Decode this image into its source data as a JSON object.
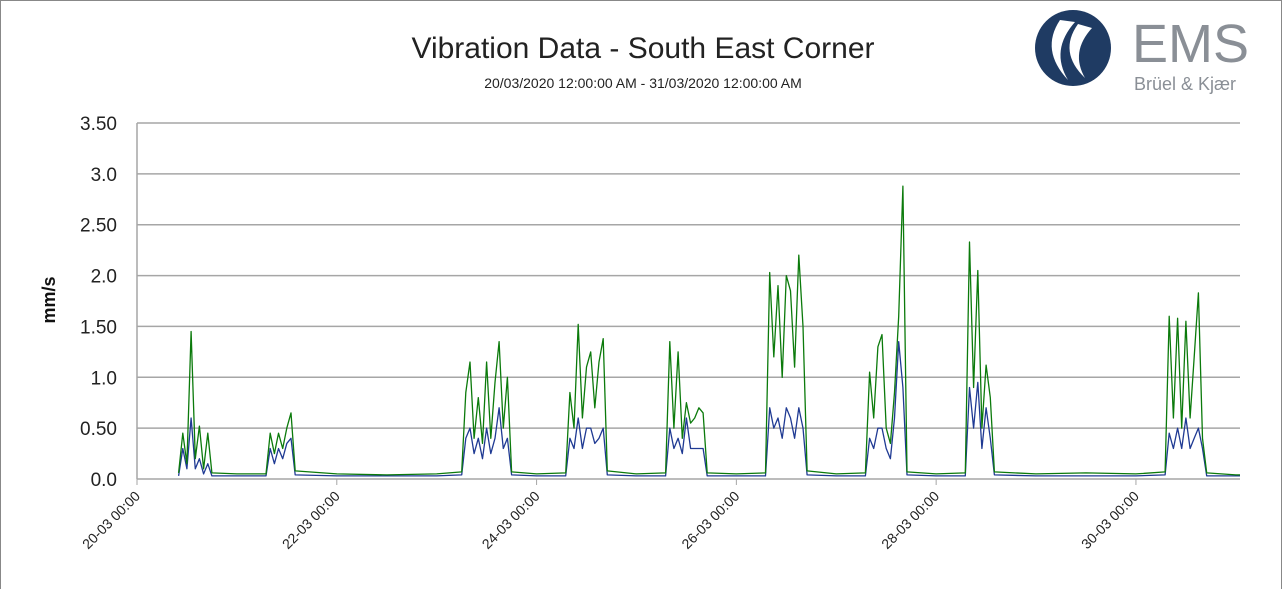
{
  "chart_data": {
    "type": "line",
    "title": "Vibration Data -  South East Corner",
    "subtitle": "20/03/2020 12:00:00 AM - 31/03/2020 12:00:00 AM",
    "y_label": "mm/s",
    "logo": {
      "name": "EMS",
      "tagline": "Brüel & Kjær"
    },
    "x": [
      "20-03 10:00",
      "20-03 11:00",
      "20-03 12:00",
      "20-03 13:00",
      "20-03 14:00",
      "20-03 15:00",
      "20-03 16:00",
      "20-03 17:00",
      "20-03 18:00",
      "21-03 00:00",
      "21-03 07:00",
      "21-03 08:00",
      "21-03 09:00",
      "21-03 10:00",
      "21-03 11:00",
      "21-03 12:00",
      "21-03 13:00",
      "21-03 14:00",
      "22-03 00:00",
      "22-03 12:00",
      "23-03 00:00",
      "23-03 06:00",
      "23-03 07:00",
      "23-03 08:00",
      "23-03 09:00",
      "23-03 10:00",
      "23-03 11:00",
      "23-03 12:00",
      "23-03 13:00",
      "23-03 14:00",
      "23-03 15:00",
      "23-03 16:00",
      "23-03 17:00",
      "23-03 18:00",
      "24-03 00:00",
      "24-03 07:00",
      "24-03 08:00",
      "24-03 09:00",
      "24-03 10:00",
      "24-03 11:00",
      "24-03 12:00",
      "24-03 13:00",
      "24-03 14:00",
      "24-03 15:00",
      "24-03 16:00",
      "24-03 17:00",
      "25-03 00:00",
      "25-03 07:00",
      "25-03 08:00",
      "25-03 09:00",
      "25-03 10:00",
      "25-03 11:00",
      "25-03 12:00",
      "25-03 13:00",
      "25-03 14:00",
      "25-03 15:00",
      "25-03 16:00",
      "25-03 17:00",
      "26-03 00:00",
      "26-03 07:00",
      "26-03 08:00",
      "26-03 09:00",
      "26-03 10:00",
      "26-03 11:00",
      "26-03 12:00",
      "26-03 13:00",
      "26-03 14:00",
      "26-03 15:00",
      "26-03 16:00",
      "26-03 17:00",
      "27-03 00:00",
      "27-03 07:00",
      "27-03 08:00",
      "27-03 09:00",
      "27-03 10:00",
      "27-03 11:00",
      "27-03 12:00",
      "27-03 13:00",
      "27-03 14:00",
      "27-03 15:00",
      "27-03 16:00",
      "27-03 17:00",
      "28-03 00:00",
      "28-03 07:00",
      "28-03 08:00",
      "28-03 09:00",
      "28-03 10:00",
      "28-03 11:00",
      "28-03 12:00",
      "28-03 13:00",
      "28-03 14:00",
      "29-03 00:00",
      "29-03 12:00",
      "30-03 00:00",
      "30-03 07:00",
      "30-03 08:00",
      "30-03 09:00",
      "30-03 10:00",
      "30-03 11:00",
      "30-03 12:00",
      "30-03 13:00",
      "30-03 14:00",
      "30-03 15:00",
      "30-03 16:00",
      "30-03 17:00",
      "31-03 00:00",
      "31-03 01:00"
    ],
    "series": [
      {
        "color": "#1f3a93",
        "values": [
          0.03,
          0.3,
          0.1,
          0.6,
          0.1,
          0.2,
          0.05,
          0.15,
          0.03,
          0.03,
          0.03,
          0.3,
          0.15,
          0.3,
          0.2,
          0.35,
          0.4,
          0.04,
          0.03,
          0.03,
          0.03,
          0.04,
          0.4,
          0.5,
          0.25,
          0.4,
          0.2,
          0.5,
          0.25,
          0.4,
          0.7,
          0.3,
          0.4,
          0.04,
          0.03,
          0.03,
          0.4,
          0.3,
          0.6,
          0.3,
          0.5,
          0.5,
          0.35,
          0.4,
          0.5,
          0.04,
          0.03,
          0.03,
          0.5,
          0.3,
          0.4,
          0.25,
          0.6,
          0.3,
          0.3,
          0.3,
          0.3,
          0.03,
          0.03,
          0.03,
          0.7,
          0.5,
          0.6,
          0.4,
          0.7,
          0.6,
          0.4,
          0.7,
          0.5,
          0.04,
          0.03,
          0.03,
          0.4,
          0.3,
          0.5,
          0.5,
          0.3,
          0.2,
          0.6,
          1.35,
          0.9,
          0.04,
          0.03,
          0.03,
          0.9,
          0.5,
          0.95,
          0.3,
          0.7,
          0.4,
          0.04,
          0.03,
          0.03,
          0.03,
          0.04,
          0.45,
          0.3,
          0.5,
          0.3,
          0.6,
          0.3,
          0.4,
          0.5,
          0.3,
          0.03,
          0.03,
          0.03
        ]
      },
      {
        "color": "#0b7a0b",
        "values": [
          0.06,
          0.45,
          0.15,
          1.45,
          0.2,
          0.52,
          0.1,
          0.45,
          0.06,
          0.05,
          0.05,
          0.45,
          0.25,
          0.45,
          0.3,
          0.5,
          0.65,
          0.08,
          0.05,
          0.04,
          0.05,
          0.07,
          0.85,
          1.15,
          0.4,
          0.8,
          0.35,
          1.15,
          0.4,
          0.95,
          1.35,
          0.5,
          1.0,
          0.07,
          0.05,
          0.06,
          0.85,
          0.5,
          1.52,
          0.6,
          1.1,
          1.25,
          0.7,
          1.15,
          1.38,
          0.08,
          0.05,
          0.06,
          1.35,
          0.5,
          1.25,
          0.4,
          0.75,
          0.55,
          0.6,
          0.7,
          0.65,
          0.06,
          0.05,
          0.06,
          2.03,
          1.2,
          1.9,
          1.0,
          2.0,
          1.85,
          1.1,
          2.2,
          1.5,
          0.08,
          0.05,
          0.06,
          1.05,
          0.6,
          1.3,
          1.42,
          0.5,
          0.35,
          0.85,
          1.6,
          2.88,
          0.07,
          0.05,
          0.06,
          2.33,
          0.9,
          2.05,
          0.5,
          1.12,
          0.8,
          0.07,
          0.05,
          0.06,
          0.05,
          0.07,
          1.6,
          0.6,
          1.58,
          0.5,
          1.55,
          0.6,
          1.2,
          1.83,
          0.4,
          0.06,
          0.04,
          0.04
        ]
      }
    ],
    "xlim": [
      "20-03 00:00",
      "31-03 01:00"
    ],
    "xticks": [
      "20-03 00:00",
      "22-03 00:00",
      "24-03 00:00",
      "26-03 00:00",
      "28-03 00:00",
      "30-03 00:00"
    ],
    "ylim": [
      0,
      3.5
    ],
    "yticks": [
      {
        "value": 0,
        "label": "0.0"
      },
      {
        "value": 0.5,
        "label": "0.50"
      },
      {
        "value": 1,
        "label": "1.0"
      },
      {
        "value": 1.5,
        "label": "1.50"
      },
      {
        "value": 2,
        "label": "2.0"
      },
      {
        "value": 2.5,
        "label": "2.50"
      },
      {
        "value": 3,
        "label": "3.0"
      },
      {
        "value": 3.5,
        "label": "3.50"
      }
    ],
    "grid": true
  }
}
